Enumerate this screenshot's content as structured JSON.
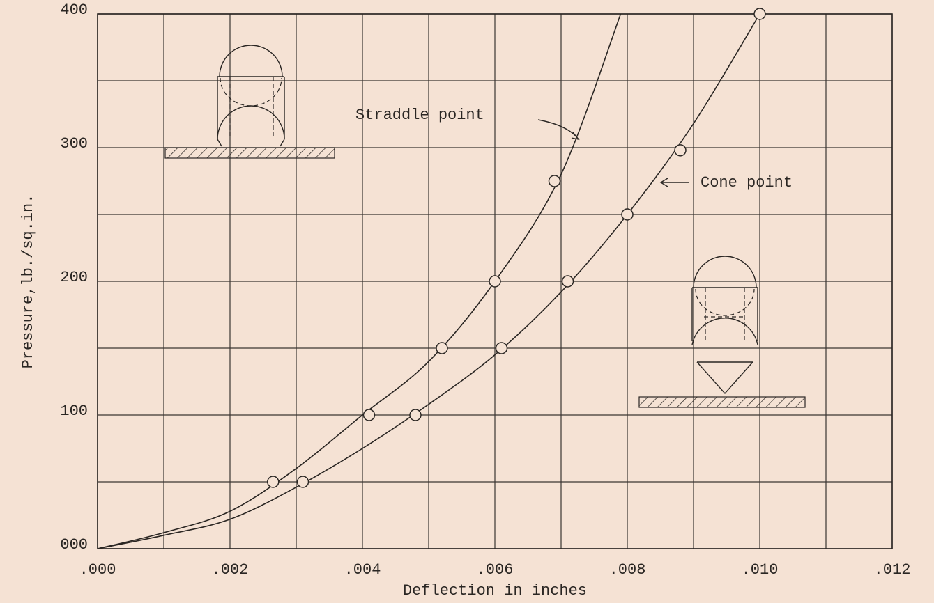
{
  "chart_data": {
    "type": "line",
    "xlabel": "Deflection in inches",
    "ylabel": "Pressure,lb./sq.in.",
    "xlim": [
      0,
      0.012
    ],
    "ylim": [
      0,
      400
    ],
    "xticks": [
      {
        "value": 0,
        "label": ".000"
      },
      {
        "value": 0.002,
        "label": ".002"
      },
      {
        "value": 0.004,
        "label": ".004"
      },
      {
        "value": 0.006,
        "label": ".006"
      },
      {
        "value": 0.008,
        "label": ".008"
      },
      {
        "value": 0.01,
        "label": ".010"
      },
      {
        "value": 0.012,
        "label": ".012"
      }
    ],
    "yticks": [
      {
        "value": 0,
        "label": "000"
      },
      100,
      200,
      300,
      400
    ],
    "grid": true,
    "series": [
      {
        "name": "Straddle point",
        "color": "#2a2623",
        "curve": {
          "x": [
            0,
            0.001,
            0.002,
            0.003,
            0.004,
            0.005,
            0.006,
            0.007,
            0.0079
          ],
          "values": [
            0,
            12,
            28,
            60,
            100,
            140,
            200,
            280,
            400
          ]
        },
        "points": {
          "x": [
            0.00265,
            0.0041,
            0.0052,
            0.006,
            0.0069
          ],
          "values": [
            50,
            100,
            150,
            200,
            275
          ]
        }
      },
      {
        "name": "Cone point",
        "color": "#2a2623",
        "curve": {
          "x": [
            0,
            0.001,
            0.002,
            0.003,
            0.004,
            0.005,
            0.006,
            0.007,
            0.008,
            0.009,
            0.01
          ],
          "values": [
            0,
            10,
            22,
            46,
            75,
            108,
            145,
            192,
            250,
            318,
            400
          ]
        },
        "points": {
          "x": [
            0.0031,
            0.0048,
            0.0061,
            0.0071,
            0.008,
            0.0088,
            0.01
          ],
          "values": [
            50,
            100,
            150,
            200,
            250,
            298,
            400
          ]
        }
      }
    ]
  }
}
